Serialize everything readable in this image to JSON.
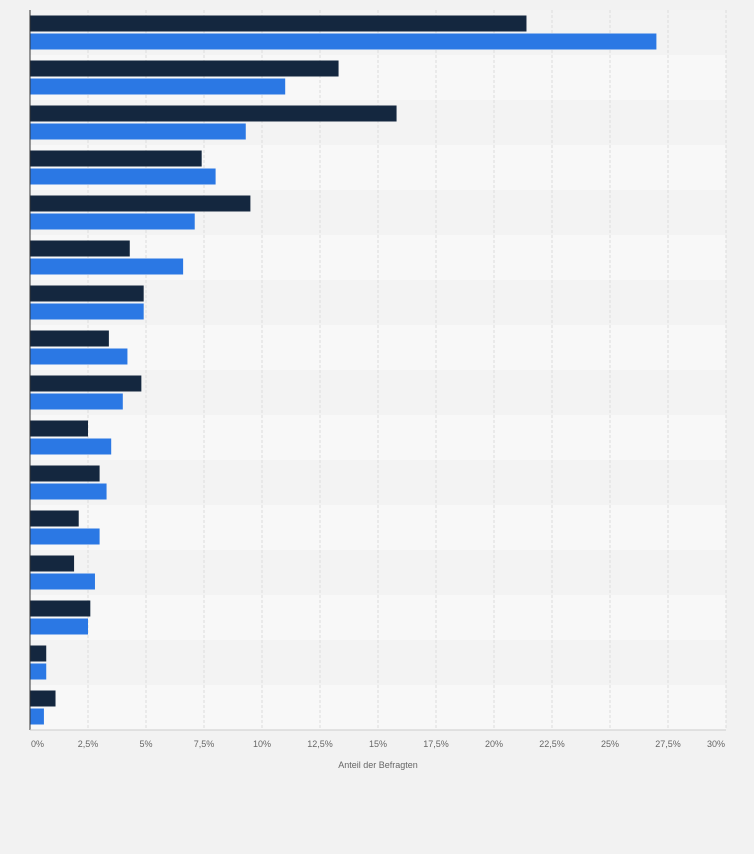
{
  "chart_data": {
    "type": "bar",
    "orientation": "horizontal",
    "categories": [
      "",
      "",
      "",
      "",
      "",
      "",
      "",
      "",
      "",
      "",
      "",
      "",
      "",
      "",
      "",
      ""
    ],
    "series": [
      {
        "color": "#14273f",
        "values": [
          21.4,
          13.3,
          15.8,
          7.4,
          9.5,
          4.3,
          4.9,
          3.4,
          4.8,
          2.5,
          3.0,
          2.1,
          1.9,
          2.6,
          0.7,
          1.1
        ]
      },
      {
        "color": "#2b78e4",
        "values": [
          27.0,
          11.0,
          9.3,
          8.0,
          7.1,
          6.6,
          4.9,
          4.2,
          4.0,
          3.5,
          3.3,
          3.0,
          2.8,
          2.5,
          0.7,
          0.6
        ]
      }
    ],
    "x_axis": {
      "label": "Anteil der Befragten",
      "range": [
        0,
        30
      ],
      "ticks": [
        0,
        2.5,
        5,
        7.5,
        10,
        12.5,
        15,
        17.5,
        20,
        22.5,
        25,
        27.5,
        30
      ],
      "tick_labels": [
        "0%",
        "2,5%",
        "5%",
        "7,5%",
        "10%",
        "12,5%",
        "15%",
        "17,5%",
        "20%",
        "22,5%",
        "25%",
        "27,5%",
        "30%"
      ]
    },
    "grid": true,
    "legend": "none"
  }
}
